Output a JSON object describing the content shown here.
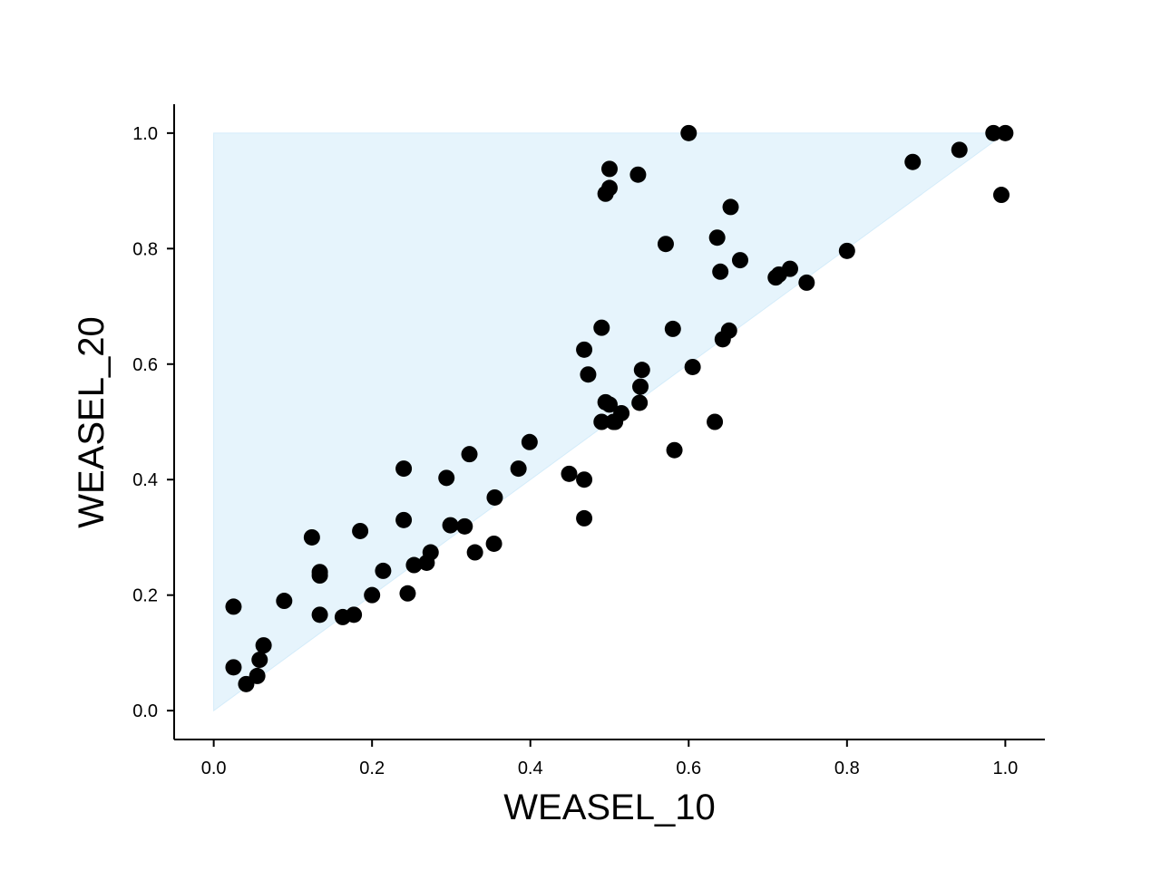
{
  "chart_data": {
    "type": "scatter",
    "xlabel": "WEASEL_10",
    "ylabel": "WEASEL_20",
    "xlim": [
      -0.05,
      1.05
    ],
    "ylim": [
      -0.05,
      1.05
    ],
    "x_ticks": [
      "0.0",
      "0.2",
      "0.4",
      "0.6",
      "0.8",
      "1.0"
    ],
    "y_ticks": [
      "0.0",
      "0.2",
      "0.4",
      "0.6",
      "0.8",
      "1.0"
    ],
    "grid": false,
    "shaded_region": {
      "description": "upper triangle above diagonal y = x",
      "vertices": [
        [
          0,
          0
        ],
        [
          0,
          1
        ],
        [
          1,
          1
        ]
      ],
      "color": "#e6f4fc"
    },
    "marker_color": "#000000",
    "points": [
      [
        0.025,
        0.075
      ],
      [
        0.025,
        0.18
      ],
      [
        0.041,
        0.046
      ],
      [
        0.055,
        0.06
      ],
      [
        0.058,
        0.088
      ],
      [
        0.063,
        0.113
      ],
      [
        0.089,
        0.19
      ],
      [
        0.124,
        0.3
      ],
      [
        0.134,
        0.166
      ],
      [
        0.134,
        0.234
      ],
      [
        0.134,
        0.24
      ],
      [
        0.163,
        0.162
      ],
      [
        0.177,
        0.166
      ],
      [
        0.185,
        0.311
      ],
      [
        0.2,
        0.2
      ],
      [
        0.214,
        0.242
      ],
      [
        0.24,
        0.419
      ],
      [
        0.24,
        0.33
      ],
      [
        0.245,
        0.203
      ],
      [
        0.253,
        0.252
      ],
      [
        0.269,
        0.256
      ],
      [
        0.274,
        0.274
      ],
      [
        0.294,
        0.403
      ],
      [
        0.299,
        0.321
      ],
      [
        0.317,
        0.319
      ],
      [
        0.323,
        0.444
      ],
      [
        0.33,
        0.274
      ],
      [
        0.354,
        0.289
      ],
      [
        0.355,
        0.369
      ],
      [
        0.385,
        0.419
      ],
      [
        0.399,
        0.465
      ],
      [
        0.449,
        0.41
      ],
      [
        0.468,
        0.4
      ],
      [
        0.468,
        0.333
      ],
      [
        0.468,
        0.625
      ],
      [
        0.473,
        0.582
      ],
      [
        0.49,
        0.5
      ],
      [
        0.49,
        0.663
      ],
      [
        0.495,
        0.534
      ],
      [
        0.495,
        0.895
      ],
      [
        0.5,
        0.905
      ],
      [
        0.5,
        0.938
      ],
      [
        0.5,
        0.53
      ],
      [
        0.505,
        0.5
      ],
      [
        0.507,
        0.5
      ],
      [
        0.515,
        0.515
      ],
      [
        0.536,
        0.928
      ],
      [
        0.538,
        0.533
      ],
      [
        0.539,
        0.561
      ],
      [
        0.541,
        0.59
      ],
      [
        0.571,
        0.808
      ],
      [
        0.58,
        0.661
      ],
      [
        0.582,
        0.451
      ],
      [
        0.6,
        1.0
      ],
      [
        0.605,
        0.595
      ],
      [
        0.633,
        0.5
      ],
      [
        0.636,
        0.819
      ],
      [
        0.64,
        0.76
      ],
      [
        0.643,
        0.643
      ],
      [
        0.651,
        0.658
      ],
      [
        0.653,
        0.872
      ],
      [
        0.665,
        0.78
      ],
      [
        0.71,
        0.75
      ],
      [
        0.714,
        0.755
      ],
      [
        0.728,
        0.765
      ],
      [
        0.749,
        0.741
      ],
      [
        0.8,
        0.796
      ],
      [
        0.883,
        0.95
      ],
      [
        0.942,
        0.971
      ],
      [
        0.985,
        1.0
      ],
      [
        0.995,
        0.893
      ],
      [
        1.0,
        1.0
      ]
    ]
  }
}
